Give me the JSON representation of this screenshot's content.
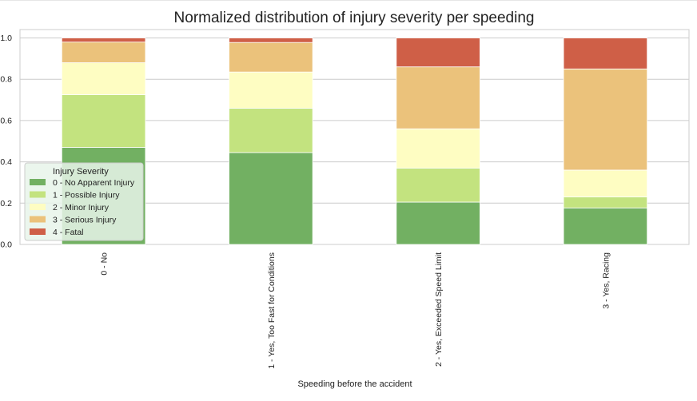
{
  "chart_data": {
    "type": "bar",
    "stacked": true,
    "title": "Normalized distribution of injury severity per speeding",
    "xlabel": "Speeding before the accident",
    "ylabel": "",
    "ylim": [
      0,
      1.0
    ],
    "yticks": [
      "0.0",
      "0.2",
      "0.4",
      "0.6",
      "0.8",
      "1.0"
    ],
    "grid": true,
    "categories": [
      "0 - No",
      "1 - Yes, Too Fast for Conditions",
      "2 - Yes, Exceeded Speed Limit",
      "3 - Yes, Racing"
    ],
    "legend": {
      "title": "Injury Severity",
      "placement": "lower-left"
    },
    "series": [
      {
        "name": "0 - No Apparent Injury",
        "color": "#72b062",
        "values": [
          0.47,
          0.445,
          0.205,
          0.177
        ]
      },
      {
        "name": "1 - Possible Injury",
        "color": "#c3e37f",
        "values": [
          0.255,
          0.215,
          0.165,
          0.053
        ]
      },
      {
        "name": "2 - Minor Injury",
        "color": "#fefdc2",
        "values": [
          0.155,
          0.175,
          0.19,
          0.13
        ]
      },
      {
        "name": "3 - Serious Injury",
        "color": "#ebc27b",
        "values": [
          0.1,
          0.143,
          0.3,
          0.49
        ]
      },
      {
        "name": "4 - Fatal",
        "color": "#cf5f47",
        "values": [
          0.02,
          0.022,
          0.14,
          0.15
        ]
      }
    ]
  }
}
